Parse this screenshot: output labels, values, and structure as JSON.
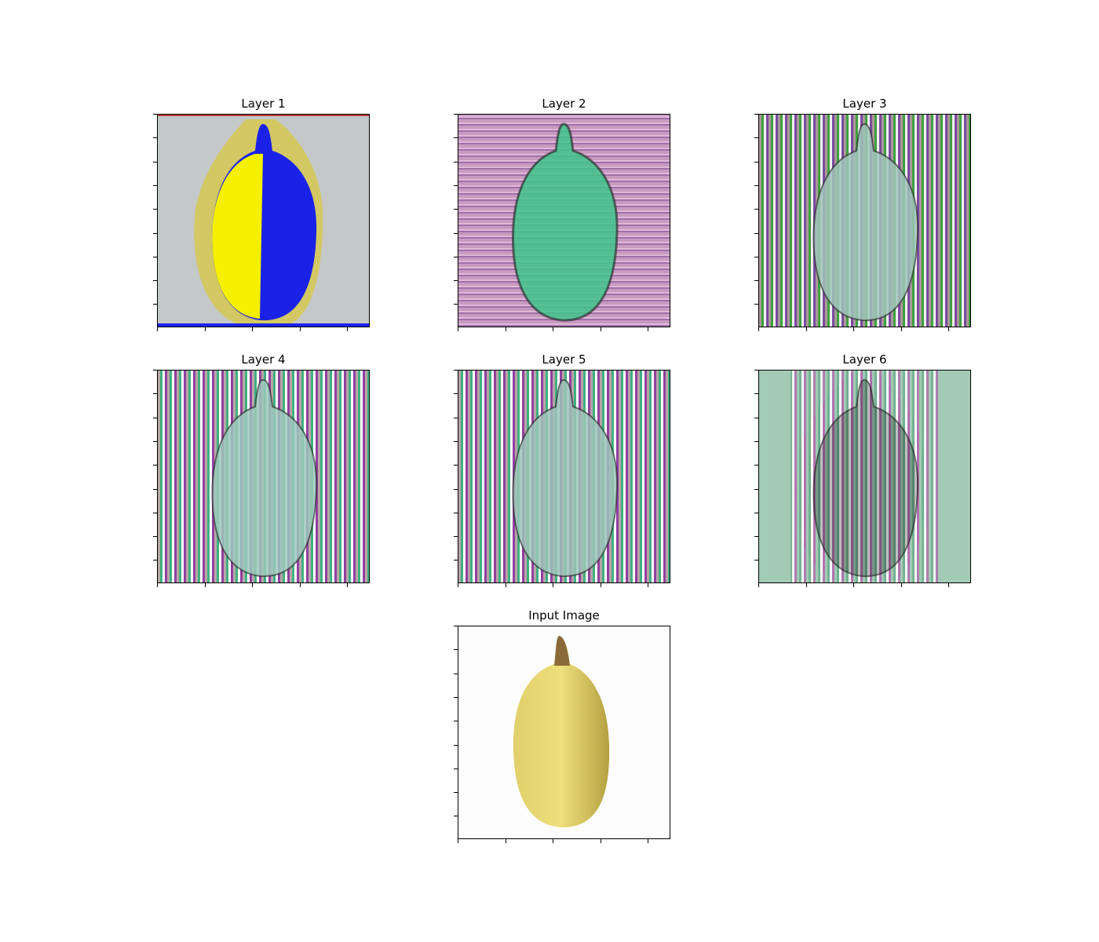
{
  "figure": {
    "panels": [
      {
        "id": "layer1",
        "title": "Layer 1",
        "style": "layer1"
      },
      {
        "id": "layer2",
        "title": "Layer 2",
        "style": "layer2"
      },
      {
        "id": "layer3",
        "title": "Layer 3",
        "style": "layer3"
      },
      {
        "id": "layer4",
        "title": "Layer 4",
        "style": "layer4"
      },
      {
        "id": "layer5",
        "title": "Layer 5",
        "style": "layer5"
      },
      {
        "id": "layer6",
        "title": "Layer 6",
        "style": "layer6"
      },
      {
        "id": "input",
        "title": "Input Image",
        "style": "input"
      }
    ]
  },
  "colors": {
    "layer1_bg": "#c4c8c9",
    "layer1_yellow": "#f5f000",
    "layer1_blue": "#1a22e8",
    "layer2_bg": "#c89ac0",
    "layer2_body": "#3fc48a",
    "layer3_bg": "#a89a98",
    "layer3_body": "#9fc4b8",
    "layer4_bg": "#b8a8a8",
    "layer4_body": "#9cc8bc",
    "layer5_bg": "#b8a4a8",
    "layer5_body": "#9cc4b8",
    "layer6_bg": "#a2cab4",
    "input_fruit": "#e6d46a",
    "input_stem": "#8a6a3a"
  }
}
